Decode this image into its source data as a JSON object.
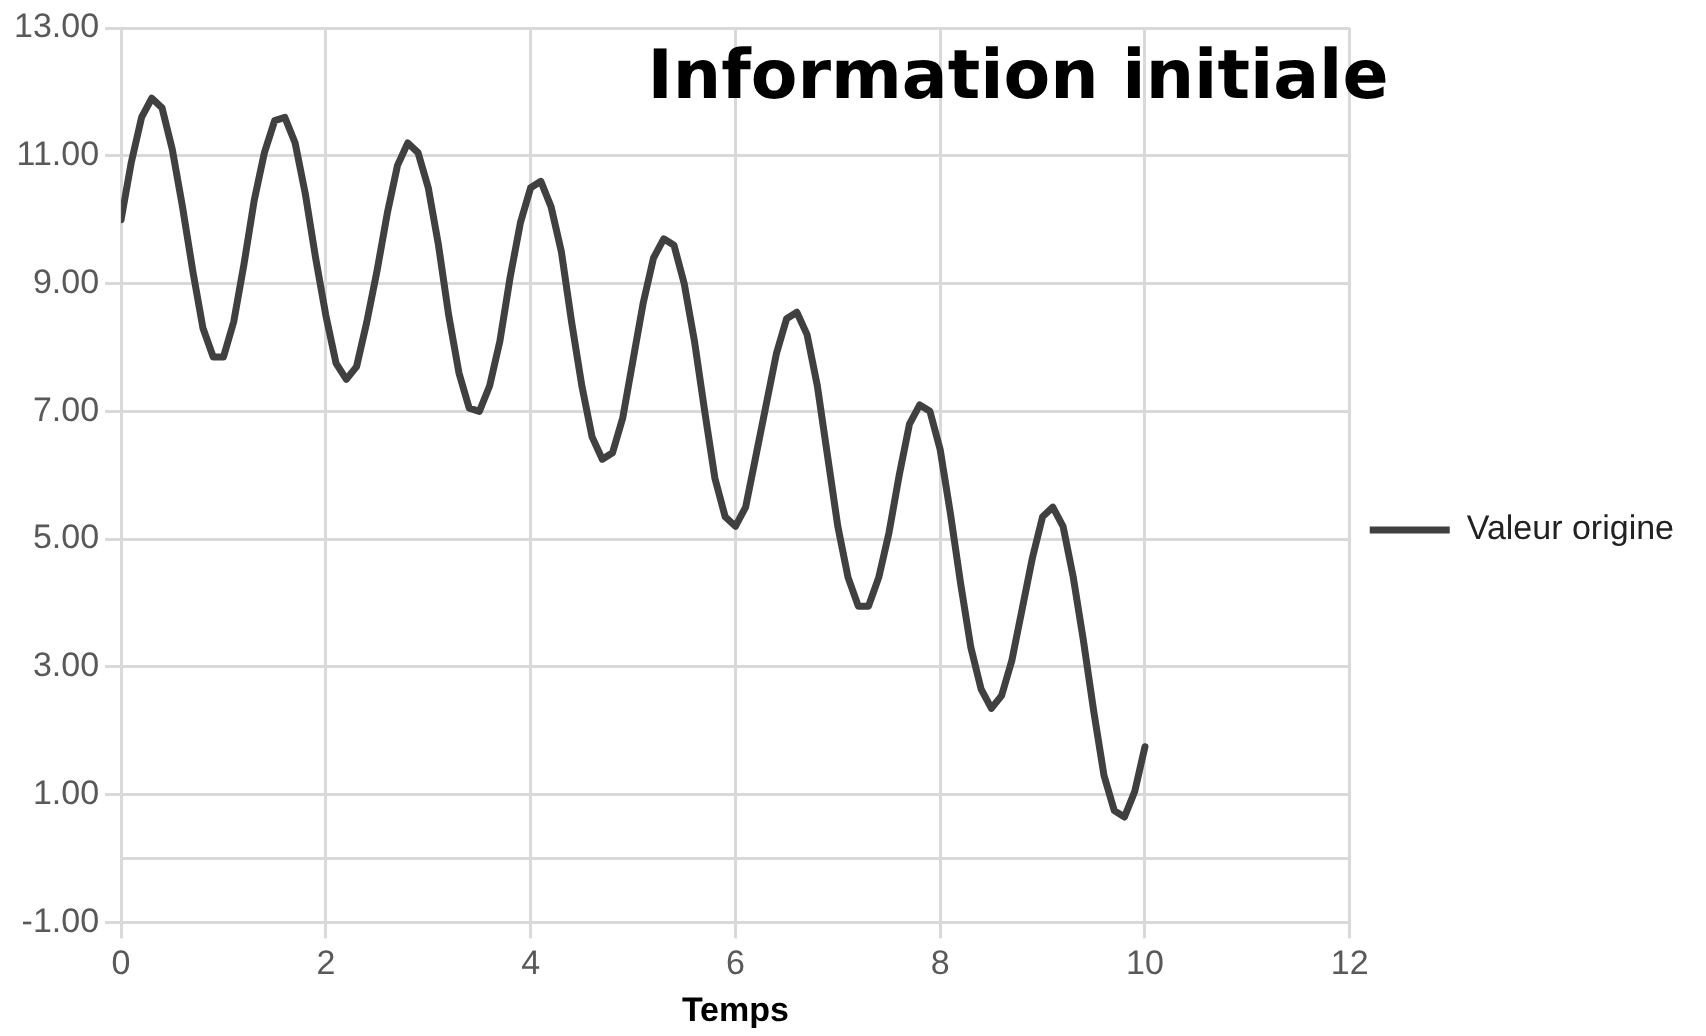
{
  "chart_data": {
    "type": "line",
    "title": "Information initiale",
    "xlabel": "Temps",
    "x": [
      0,
      0.1,
      0.2,
      0.3,
      0.4,
      0.5,
      0.6,
      0.7,
      0.8,
      0.9,
      1.0,
      1.1,
      1.2,
      1.3,
      1.4,
      1.5,
      1.6,
      1.7,
      1.8,
      1.9,
      2.0,
      2.1,
      2.2,
      2.3,
      2.4,
      2.5,
      2.6,
      2.7,
      2.8,
      2.9,
      3.0,
      3.1,
      3.2,
      3.3,
      3.4,
      3.5,
      3.6,
      3.7,
      3.8,
      3.9,
      4.0,
      4.1,
      4.2,
      4.3,
      4.4,
      4.5,
      4.6,
      4.7,
      4.8,
      4.9,
      5.0,
      5.1,
      5.2,
      5.3,
      5.4,
      5.5,
      5.6,
      5.7,
      5.8,
      5.9,
      6.0,
      6.1,
      6.2,
      6.3,
      6.4,
      6.5,
      6.6,
      6.7,
      6.8,
      6.9,
      7.0,
      7.1,
      7.2,
      7.3,
      7.4,
      7.5,
      7.6,
      7.7,
      7.8,
      7.9,
      8.0,
      8.1,
      8.2,
      8.3,
      8.4,
      8.5,
      8.6,
      8.7,
      8.8,
      8.9,
      9.0,
      9.1,
      9.2,
      9.3,
      9.4,
      9.5,
      9.6,
      9.7,
      9.8,
      9.9,
      10.0
    ],
    "series": [
      {
        "name": "Valeur origine",
        "color": "#404040",
        "values": [
          10,
          10.9,
          11.6,
          11.9,
          11.75,
          11.1,
          10.2,
          9.2,
          8.3,
          7.85,
          7.85,
          8.4,
          9.3,
          10.3,
          11.05,
          11.55,
          11.6,
          11.2,
          10.4,
          9.4,
          8.5,
          7.75,
          7.5,
          7.7,
          8.4,
          9.2,
          10.1,
          10.85,
          11.2,
          11.05,
          10.5,
          9.6,
          8.5,
          7.6,
          7.05,
          7.0,
          7.4,
          8.1,
          9.1,
          9.95,
          10.5,
          10.6,
          10.2,
          9.5,
          8.4,
          7.4,
          6.6,
          6.25,
          6.35,
          6.9,
          7.8,
          8.7,
          9.4,
          9.7,
          9.6,
          9.0,
          8.1,
          7.0,
          5.95,
          5.35,
          5.2,
          5.5,
          6.3,
          7.1,
          7.9,
          8.45,
          8.55,
          8.2,
          7.4,
          6.3,
          5.2,
          4.4,
          3.95,
          3.95,
          4.4,
          5.1,
          6.0,
          6.8,
          7.1,
          7.0,
          6.4,
          5.4,
          4.3,
          3.3,
          2.65,
          2.35,
          2.55,
          3.1,
          3.9,
          4.7,
          5.35,
          5.5,
          5.2,
          4.4,
          3.4,
          2.3,
          1.3,
          0.75,
          0.65,
          1.05,
          1.75
        ]
      }
    ],
    "xlim": [
      0,
      12
    ],
    "xticks": [
      0,
      2,
      4,
      6,
      8,
      10,
      12
    ],
    "ylim": [
      -1,
      13
    ],
    "yticks": [
      {
        "value": -1,
        "label": "-1.00"
      },
      {
        "value": 1,
        "label": "1.00"
      },
      {
        "value": 3,
        "label": "3.00"
      },
      {
        "value": 5,
        "label": "5.00"
      },
      {
        "value": 7,
        "label": "7.00"
      },
      {
        "value": 9,
        "label": "9.00"
      },
      {
        "value": 11,
        "label": "11.00"
      },
      {
        "value": 13,
        "label": "13.00"
      }
    ],
    "ref_lines": [
      {
        "axis": "y",
        "value": 0,
        "color": "#d9d9d9"
      }
    ],
    "grid": true,
    "legend": "right",
    "marker": "none",
    "line_style": "solid"
  }
}
